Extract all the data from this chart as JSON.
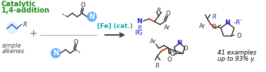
{
  "bg_color": "#ffffff",
  "title_line1": "Catalytic",
  "title_line2": "1,4-addition",
  "title_color": "#1a8c1a",
  "title_fontsize": 7.2,
  "fe_cat_text": "[Fe] (cat.)",
  "fe_cat_color": "#00aaaa",
  "examples_line1": "41 examples",
  "examples_line2": "up to 93% y.",
  "examples_fontsize": 6.2,
  "arrow_color": "#444444",
  "plus_color": "#666666",
  "n_circle_color": "#55aaff",
  "red_bond_color": "#cc2200",
  "blue_label_color": "#2222cc",
  "pg_color": "#2222cc",
  "lc": "#222222",
  "lw": 1.0,
  "ac": "#2244aa",
  "simple_alkenes_fontsize": 6.0
}
